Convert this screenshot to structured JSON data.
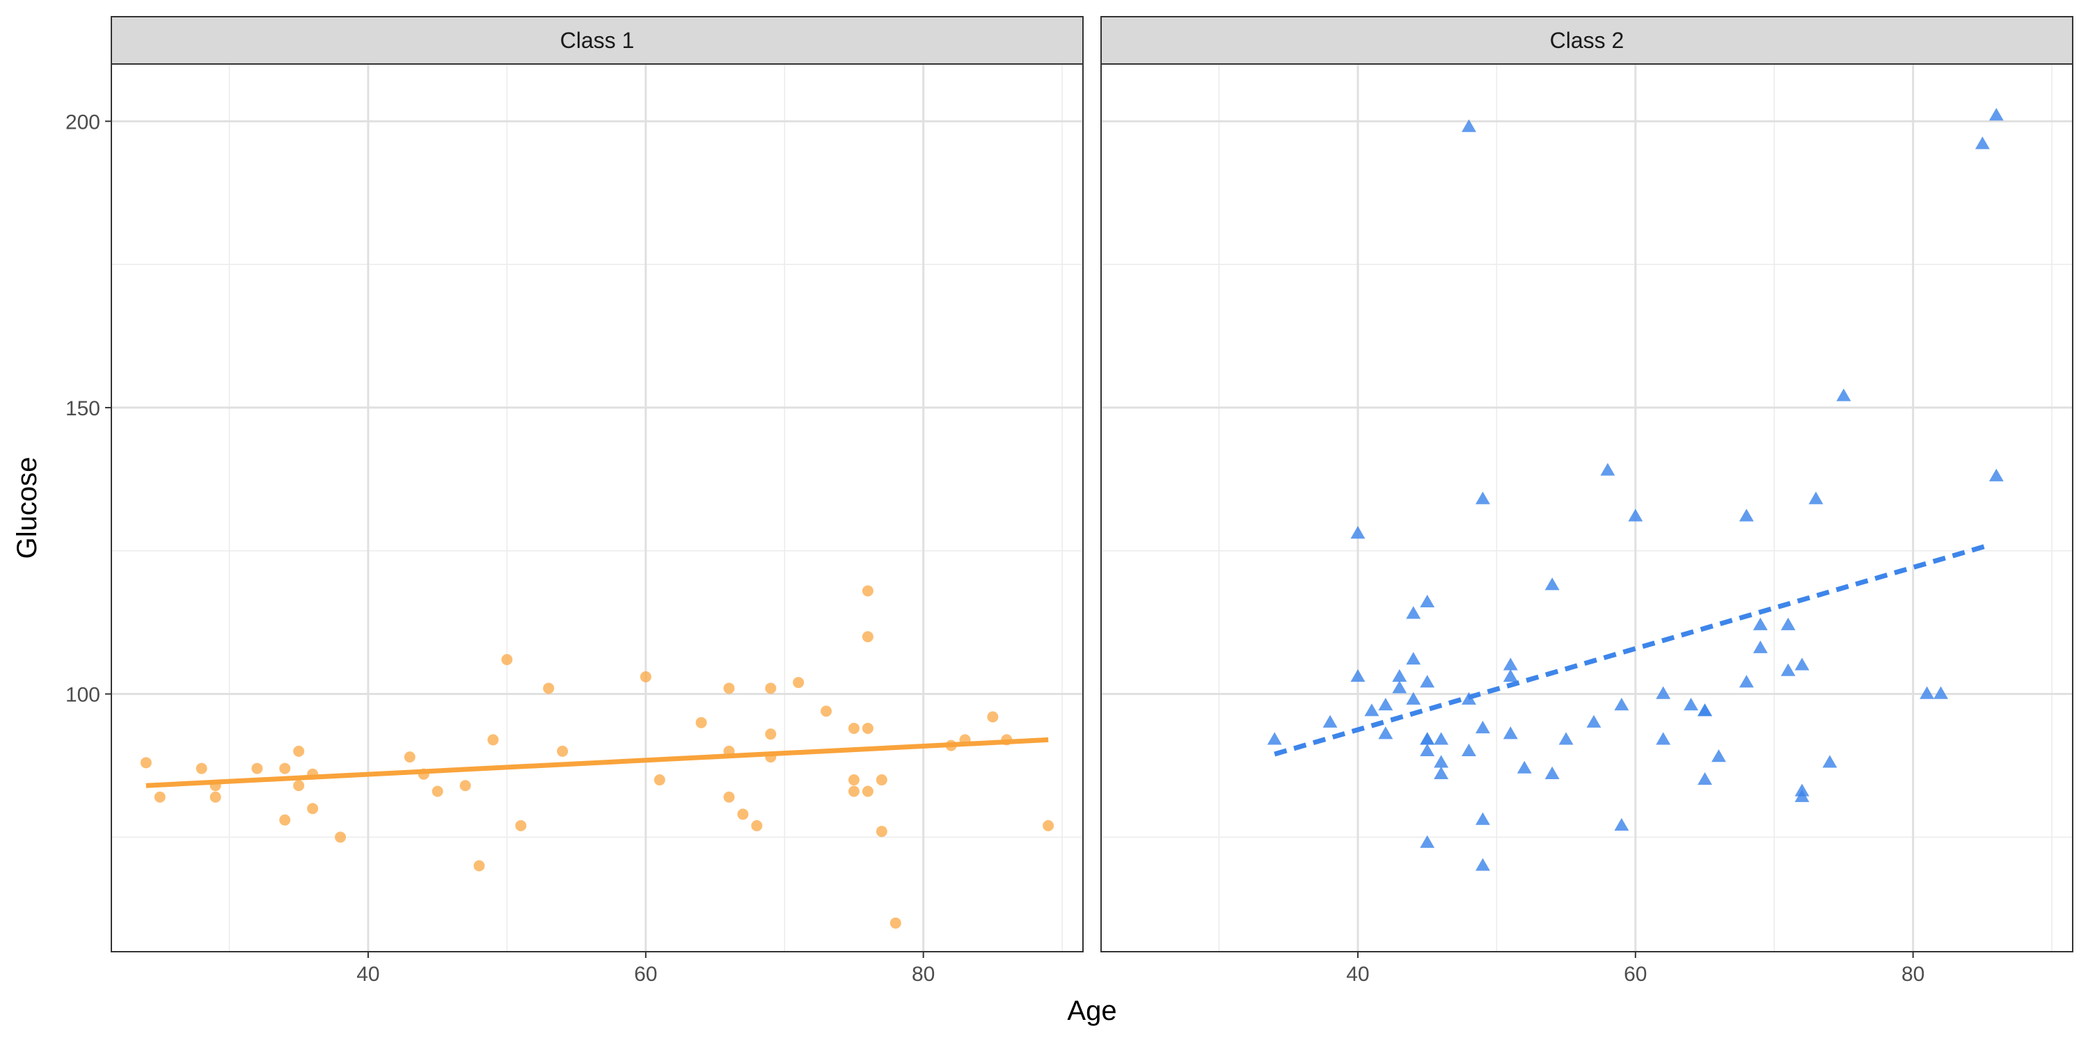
{
  "chart_data": {
    "type": "scatter",
    "facets": [
      "Class 1",
      "Class 2"
    ],
    "xlabel": "Age",
    "ylabel": "Glucose",
    "xlim": [
      21.5,
      91.5
    ],
    "ylim": [
      55,
      210
    ],
    "x_ticks": [
      40,
      60,
      80
    ],
    "y_ticks": [
      100,
      150,
      200
    ],
    "grid": true,
    "colors": {
      "Class 1": "#F9A33B",
      "Class 2": "#3D85EA"
    },
    "series": [
      {
        "facet": "Class 1",
        "marker": "circle",
        "points": [
          [
            24,
            88
          ],
          [
            25,
            82
          ],
          [
            28,
            87
          ],
          [
            29,
            84
          ],
          [
            29,
            82
          ],
          [
            32,
            87
          ],
          [
            34,
            87
          ],
          [
            34,
            78
          ],
          [
            35,
            90
          ],
          [
            35,
            84
          ],
          [
            36,
            86
          ],
          [
            36,
            80
          ],
          [
            38,
            75
          ],
          [
            43,
            89
          ],
          [
            44,
            86
          ],
          [
            45,
            83
          ],
          [
            47,
            84
          ],
          [
            48,
            70
          ],
          [
            49,
            92
          ],
          [
            50,
            106
          ],
          [
            51,
            77
          ],
          [
            53,
            101
          ],
          [
            54,
            90
          ],
          [
            60,
            103
          ],
          [
            61,
            85
          ],
          [
            64,
            95
          ],
          [
            66,
            101
          ],
          [
            66,
            90
          ],
          [
            66,
            82
          ],
          [
            67,
            79
          ],
          [
            68,
            77
          ],
          [
            69,
            101
          ],
          [
            69,
            93
          ],
          [
            69,
            89
          ],
          [
            71,
            102
          ],
          [
            73,
            97
          ],
          [
            75,
            94
          ],
          [
            75,
            85
          ],
          [
            75,
            83
          ],
          [
            76,
            118
          ],
          [
            76,
            110
          ],
          [
            76,
            94
          ],
          [
            76,
            83
          ],
          [
            77,
            85
          ],
          [
            77,
            76
          ],
          [
            78,
            60
          ],
          [
            82,
            91
          ],
          [
            83,
            92
          ],
          [
            85,
            96
          ],
          [
            86,
            92
          ],
          [
            89,
            77
          ]
        ],
        "trend": {
          "style": "solid",
          "x": [
            24,
            89
          ],
          "y": [
            84,
            92
          ]
        }
      },
      {
        "facet": "Class 2",
        "marker": "triangle",
        "points": [
          [
            34,
            92
          ],
          [
            38,
            95
          ],
          [
            40,
            128
          ],
          [
            40,
            103
          ],
          [
            41,
            97
          ],
          [
            42,
            98
          ],
          [
            42,
            93
          ],
          [
            43,
            101
          ],
          [
            43,
            103
          ],
          [
            44,
            114
          ],
          [
            44,
            106
          ],
          [
            44,
            99
          ],
          [
            45,
            116
          ],
          [
            45,
            102
          ],
          [
            45,
            92
          ],
          [
            45,
            92
          ],
          [
            45,
            90
          ],
          [
            45,
            74
          ],
          [
            46,
            92
          ],
          [
            46,
            88
          ],
          [
            46,
            86
          ],
          [
            48,
            199
          ],
          [
            48,
            99
          ],
          [
            48,
            90
          ],
          [
            49,
            134
          ],
          [
            49,
            94
          ],
          [
            49,
            78
          ],
          [
            49,
            70
          ],
          [
            51,
            105
          ],
          [
            51,
            103
          ],
          [
            51,
            93
          ],
          [
            52,
            87
          ],
          [
            54,
            119
          ],
          [
            54,
            86
          ],
          [
            55,
            92
          ],
          [
            57,
            95
          ],
          [
            58,
            139
          ],
          [
            59,
            98
          ],
          [
            59,
            77
          ],
          [
            60,
            131
          ],
          [
            62,
            100
          ],
          [
            62,
            92
          ],
          [
            64,
            98
          ],
          [
            65,
            97
          ],
          [
            65,
            97
          ],
          [
            65,
            85
          ],
          [
            66,
            89
          ],
          [
            68,
            131
          ],
          [
            68,
            102
          ],
          [
            69,
            112
          ],
          [
            69,
            108
          ],
          [
            71,
            112
          ],
          [
            71,
            104
          ],
          [
            72,
            105
          ],
          [
            72,
            83
          ],
          [
            72,
            82
          ],
          [
            73,
            134
          ],
          [
            74,
            88
          ],
          [
            75,
            152
          ],
          [
            81,
            100
          ],
          [
            82,
            100
          ],
          [
            85,
            196
          ],
          [
            86,
            201
          ],
          [
            86,
            138
          ]
        ],
        "trend": {
          "style": "dashed",
          "x": [
            34,
            85.5
          ],
          "y": [
            89.5,
            126
          ]
        }
      }
    ]
  }
}
